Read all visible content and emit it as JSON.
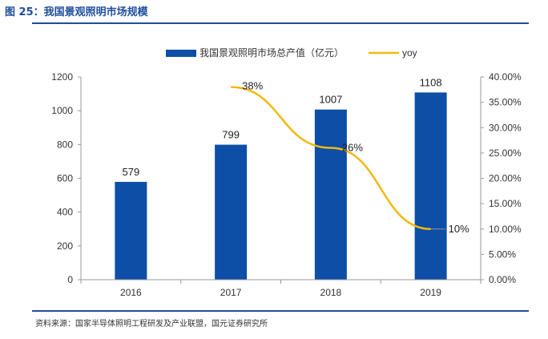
{
  "figure": {
    "title": "图 25：我国景观照明市场规模",
    "source": "资料来源：国家半导体照明工程研发及产业联盟，国元证券研究所"
  },
  "colors": {
    "bar": "#0d4ea6",
    "line": "#f2b90f",
    "axis": "#999999",
    "brand": "#1f4e9c"
  },
  "chart_data": {
    "type": "bar",
    "categories": [
      "2016",
      "2017",
      "2018",
      "2019"
    ],
    "series": [
      {
        "name": "我国景观照明市场总产值（亿元）",
        "type": "bar",
        "axis": "left",
        "values": [
          579,
          799,
          1007,
          1108
        ],
        "labels": [
          "579",
          "799",
          "1007",
          "1108"
        ]
      },
      {
        "name": "yoy",
        "type": "line",
        "axis": "right",
        "values": [
          null,
          38,
          26,
          10
        ],
        "labels": [
          "",
          "38%",
          "26%",
          "10%"
        ]
      }
    ],
    "ylim": [
      0,
      1200
    ],
    "yticks": [
      "0",
      "200",
      "400",
      "600",
      "800",
      "1000",
      "1200"
    ],
    "y2lim": [
      0,
      40
    ],
    "y2ticks": [
      "0.00%",
      "5.00%",
      "10.00%",
      "15.00%",
      "20.00%",
      "25.00%",
      "30.00%",
      "35.00%",
      "40.00%"
    ],
    "legend_position": "top"
  }
}
